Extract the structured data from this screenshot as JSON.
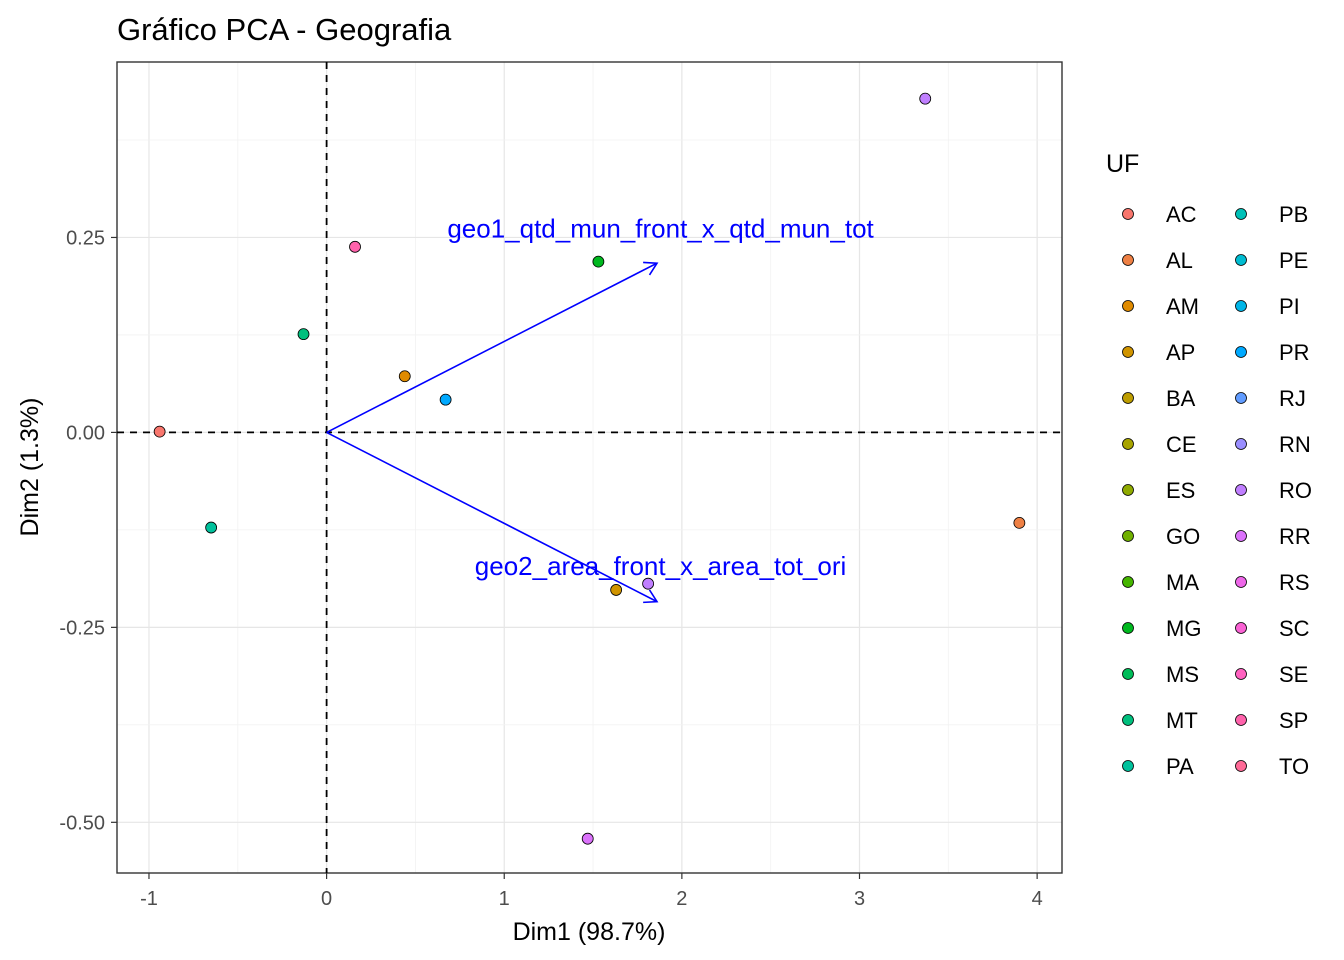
{
  "chart_data": {
    "type": "scatter",
    "title": "Gráfico PCA - Geografia",
    "xlabel": "Dim1 (98.7%)",
    "ylabel": "Dim2 (1.3%)",
    "xlim": [
      -1.18,
      4.14
    ],
    "ylim": [
      -0.565,
      0.475
    ],
    "x_ticks": [
      -1,
      0,
      1,
      2,
      3,
      4
    ],
    "x_tick_labels": [
      "-1",
      "0",
      "1",
      "2",
      "3",
      "4"
    ],
    "y_ticks": [
      -0.5,
      -0.25,
      0,
      0.25
    ],
    "y_tick_labels": [
      "-0.50",
      "-0.25",
      "0.00",
      "0.25"
    ],
    "grid": true,
    "reference_lines": {
      "x": 0,
      "y": 0,
      "style": "dashed"
    },
    "legend": {
      "title": "UF",
      "position": "right",
      "entries": [
        "AC",
        "AL",
        "AM",
        "AP",
        "BA",
        "CE",
        "ES",
        "GO",
        "MA",
        "MG",
        "MS",
        "MT",
        "PA",
        "PB",
        "PE",
        "PI",
        "PR",
        "RJ",
        "RN",
        "RO",
        "RR",
        "RS",
        "SC",
        "SE",
        "SP",
        "TO"
      ],
      "colors": [
        "#F8766D",
        "#EE8044",
        "#E08B00",
        "#D09400",
        "#BD9D00",
        "#A8A400",
        "#8FAA00",
        "#70B000",
        "#45B500",
        "#00B81F",
        "#00BC59",
        "#00BF7D",
        "#00C19C",
        "#00C0B7",
        "#00BCD1",
        "#00B5E7",
        "#00A9FF",
        "#619CFF",
        "#9A8EFF",
        "#C07FFF",
        "#DB72FB",
        "#EE67E9",
        "#FA62D4",
        "#FF61C0",
        "#FF63AC",
        "#FF6A97"
      ]
    },
    "points": [
      {
        "x": -0.94,
        "y": 0.001,
        "color": "#F8766D"
      },
      {
        "x": 3.9,
        "y": -0.116,
        "color": "#EE8044"
      },
      {
        "x": 1.63,
        "y": -0.202,
        "color": "#D09400"
      },
      {
        "x": 0.44,
        "y": 0.072,
        "color": "#E08B00"
      },
      {
        "x": 1.53,
        "y": 0.219,
        "color": "#00B81F"
      },
      {
        "x": -0.13,
        "y": 0.126,
        "color": "#00BF7D"
      },
      {
        "x": -0.65,
        "y": -0.122,
        "color": "#00C19C"
      },
      {
        "x": 0.67,
        "y": 0.042,
        "color": "#00A9FF"
      },
      {
        "x": 1.81,
        "y": -0.194,
        "color": "#C07FFF"
      },
      {
        "x": 3.37,
        "y": 0.428,
        "color": "#C07FFF"
      },
      {
        "x": 1.47,
        "y": -0.521,
        "color": "#DB72FB"
      },
      {
        "x": 0.16,
        "y": 0.238,
        "color": "#FF63AC"
      }
    ],
    "arrows": [
      {
        "label": "geo1_qtd_mun_front_x_qtd_mun_tot",
        "x": 1.86,
        "y": 0.217,
        "label_x": 1.88,
        "label_y": 0.25,
        "color": "#0000FF"
      },
      {
        "label": "geo2_area_front_x_area_tot_ori",
        "x": 1.86,
        "y": -0.217,
        "label_x": 1.88,
        "label_y": -0.183,
        "color": "#0000FF"
      }
    ]
  }
}
